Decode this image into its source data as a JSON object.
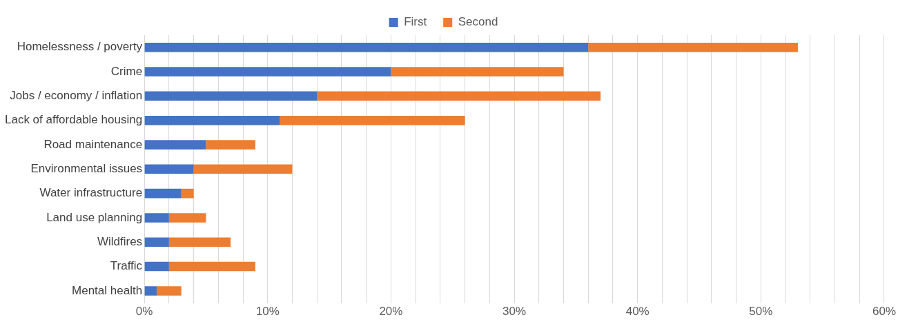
{
  "chart_data": {
    "type": "bar",
    "orientation": "horizontal",
    "stacked": true,
    "legend": "top",
    "grid": "x",
    "categories": [
      "Homelessness / poverty",
      "Crime",
      "Jobs / economy / inflation",
      "Lack of affordable housing",
      "Road maintenance",
      "Environmental issues",
      "Water infrastructure",
      "Land use planning",
      "Wildfires",
      "Traffic",
      "Mental health"
    ],
    "series": [
      {
        "name": "First",
        "color": "#4472c4",
        "values": [
          36,
          20,
          14,
          11,
          5,
          4,
          3,
          2,
          2,
          2,
          1
        ]
      },
      {
        "name": "Second",
        "color": "#ed7d31",
        "values": [
          17,
          14,
          23,
          15,
          4,
          8,
          1,
          3,
          5,
          7,
          2
        ]
      }
    ],
    "xlim": [
      0,
      60
    ],
    "xticks": [
      {
        "value": 0,
        "label": "0%"
      },
      {
        "value": 2,
        "label": null
      },
      {
        "value": 4,
        "label": null
      },
      {
        "value": 6,
        "label": null
      },
      {
        "value": 8,
        "label": null
      },
      {
        "value": 10,
        "label": "10%"
      },
      {
        "value": 12,
        "label": null
      },
      {
        "value": 14,
        "label": null
      },
      {
        "value": 16,
        "label": null
      },
      {
        "value": 18,
        "label": null
      },
      {
        "value": 20,
        "label": "20%"
      },
      {
        "value": 22,
        "label": null
      },
      {
        "value": 24,
        "label": null
      },
      {
        "value": 26,
        "label": null
      },
      {
        "value": 28,
        "label": null
      },
      {
        "value": 30,
        "label": "30%"
      },
      {
        "value": 32,
        "label": null
      },
      {
        "value": 34,
        "label": null
      },
      {
        "value": 36,
        "label": null
      },
      {
        "value": 38,
        "label": null
      },
      {
        "value": 40,
        "label": "40%"
      },
      {
        "value": 42,
        "label": null
      },
      {
        "value": 44,
        "label": null
      },
      {
        "value": 46,
        "label": null
      },
      {
        "value": 48,
        "label": null
      },
      {
        "value": 50,
        "label": "50%"
      },
      {
        "value": 52,
        "label": null
      },
      {
        "value": 54,
        "label": null
      },
      {
        "value": 56,
        "label": null
      },
      {
        "value": 58,
        "label": null
      },
      {
        "value": 60,
        "label": "60%"
      }
    ]
  }
}
